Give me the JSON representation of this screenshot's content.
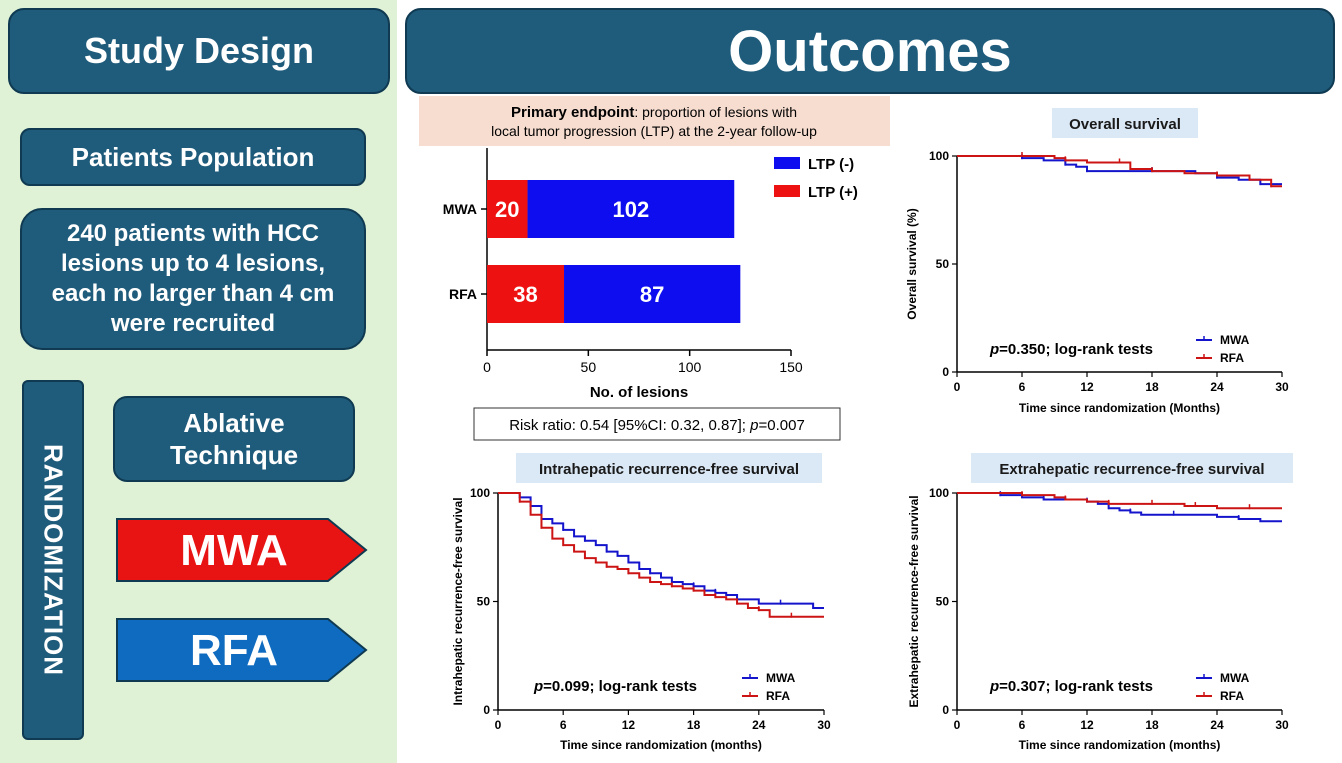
{
  "left": {
    "header": "Study Design",
    "population_title": "Patients Population",
    "population_lines": [
      "240 patients with  HCC",
      "lesions up to 4 lesions,",
      "each no larger than 4 cm",
      "were recruited"
    ],
    "randomization": "RANDOMIZATION",
    "technique_lines": [
      "Ablative",
      "Technique"
    ],
    "arm1": "MWA",
    "arm2": "RFA",
    "arm1_color": "#e81414",
    "arm2_color": "#0f6bbf"
  },
  "outcomes_title": "Outcomes",
  "colors": {
    "navy": "#1f5b7a",
    "mwa": "#1414cc",
    "rfa": "#cc1414",
    "bar_pos": "#ee1111",
    "bar_neg": "#0d0df0",
    "title_bg": "#dbe8f5",
    "endpoint_bg": "#f7ddd0"
  },
  "chart_data": [
    {
      "type": "bar",
      "orientation": "horizontal",
      "stacked": true,
      "title_bold": "Primary endpoint",
      "title_rest": ": proportion of lesions with",
      "title_line2": "local tumor progression (LTP) at the 2-year follow-up",
      "categories": [
        "MWA",
        "RFA"
      ],
      "series": [
        {
          "name": "LTP (+)",
          "values": [
            20,
            38
          ]
        },
        {
          "name": "LTP (-)",
          "values": [
            102,
            87
          ]
        }
      ],
      "legend_order": [
        "LTP (-)",
        "LTP (+)"
      ],
      "xlabel": "No. of lesions",
      "xlim": [
        0,
        150
      ],
      "xticks": [
        0,
        50,
        100,
        150
      ],
      "note": "Risk ratio: 0.54 [95%CI: 0.32, 0.87]; ",
      "note_p_label": "p",
      "note_p_value": "=0.007"
    },
    {
      "type": "line",
      "title": "Overall survival",
      "ylabel": "Overall survival (%)",
      "xlabel": "Time since randomization (Months)",
      "xlim": [
        0,
        30
      ],
      "ylim": [
        0,
        100
      ],
      "xticks": [
        0,
        6,
        12,
        18,
        24,
        30
      ],
      "yticks": [
        0,
        50,
        100
      ],
      "p_label": "p",
      "p_text": "=0.350; log-rank tests",
      "series": [
        {
          "name": "MWA",
          "x": [
            0,
            3,
            6,
            8,
            10,
            11,
            12,
            15,
            18,
            22,
            24,
            26,
            28,
            30
          ],
          "y": [
            100,
            100,
            99,
            98,
            96,
            95,
            93,
            93,
            93,
            92,
            90,
            89,
            87,
            87
          ]
        },
        {
          "name": "RFA",
          "x": [
            0,
            3,
            6,
            9,
            10,
            12,
            15,
            16,
            18,
            21,
            24,
            27,
            29,
            30
          ],
          "y": [
            100,
            100,
            100,
            99,
            98,
            97,
            97,
            94,
            93,
            92,
            91,
            89,
            86,
            86
          ]
        }
      ]
    },
    {
      "type": "line",
      "title": "Intrahepatic recurrence-free survival",
      "ylabel": "Intrahepatic recurrence-free survival",
      "xlabel": "Time since randomization (months)",
      "xlim": [
        0,
        30
      ],
      "ylim": [
        0,
        100
      ],
      "xticks": [
        0,
        6,
        12,
        18,
        24,
        30
      ],
      "yticks": [
        0,
        50,
        100
      ],
      "p_label": "p",
      "p_text": "=0.099; log-rank tests",
      "series": [
        {
          "name": "MWA",
          "x": [
            0,
            1,
            2,
            3,
            4,
            5,
            6,
            7,
            8,
            9,
            10,
            11,
            12,
            13,
            14,
            15,
            16,
            17,
            18,
            19,
            20,
            21,
            22,
            24,
            26,
            28,
            29,
            30
          ],
          "y": [
            100,
            100,
            98,
            94,
            88,
            86,
            83,
            80,
            78,
            76,
            73,
            71,
            68,
            65,
            63,
            61,
            59,
            58,
            57,
            55,
            54,
            53,
            51,
            49,
            49,
            49,
            47,
            47
          ]
        },
        {
          "name": "RFA",
          "x": [
            0,
            1,
            2,
            3,
            4,
            5,
            6,
            7,
            8,
            9,
            10,
            11,
            12,
            13,
            14,
            15,
            16,
            17,
            18,
            19,
            20,
            21,
            22,
            23,
            24,
            25,
            27,
            30
          ],
          "y": [
            100,
            100,
            96,
            90,
            84,
            79,
            76,
            73,
            70,
            68,
            66,
            65,
            63,
            61,
            59,
            58,
            57,
            56,
            55,
            53,
            52,
            51,
            49,
            47,
            46,
            43,
            43,
            43
          ]
        }
      ]
    },
    {
      "type": "line",
      "title": "Extrahepatic recurrence-free survival",
      "ylabel": "Extrahepatic recurrence-free survival",
      "xlabel": "Time since randomization (months)",
      "xlim": [
        0,
        30
      ],
      "ylim": [
        0,
        100
      ],
      "xticks": [
        0,
        6,
        12,
        18,
        24,
        30
      ],
      "yticks": [
        0,
        50,
        100
      ],
      "p_label": "p",
      "p_text": "=0.307; log-rank tests",
      "series": [
        {
          "name": "MWA",
          "x": [
            0,
            2,
            4,
            6,
            8,
            10,
            12,
            13,
            14,
            15,
            16,
            17,
            20,
            24,
            26,
            28,
            30
          ],
          "y": [
            100,
            100,
            99,
            98,
            97,
            97,
            96,
            95,
            93,
            92,
            91,
            90,
            90,
            89,
            88,
            87,
            87
          ]
        },
        {
          "name": "RFA",
          "x": [
            0,
            3,
            6,
            9,
            10,
            12,
            14,
            16,
            18,
            21,
            22,
            24,
            27,
            30
          ],
          "y": [
            100,
            100,
            99,
            98,
            97,
            96,
            95,
            95,
            95,
            94,
            94,
            93,
            93,
            93
          ]
        }
      ]
    }
  ]
}
